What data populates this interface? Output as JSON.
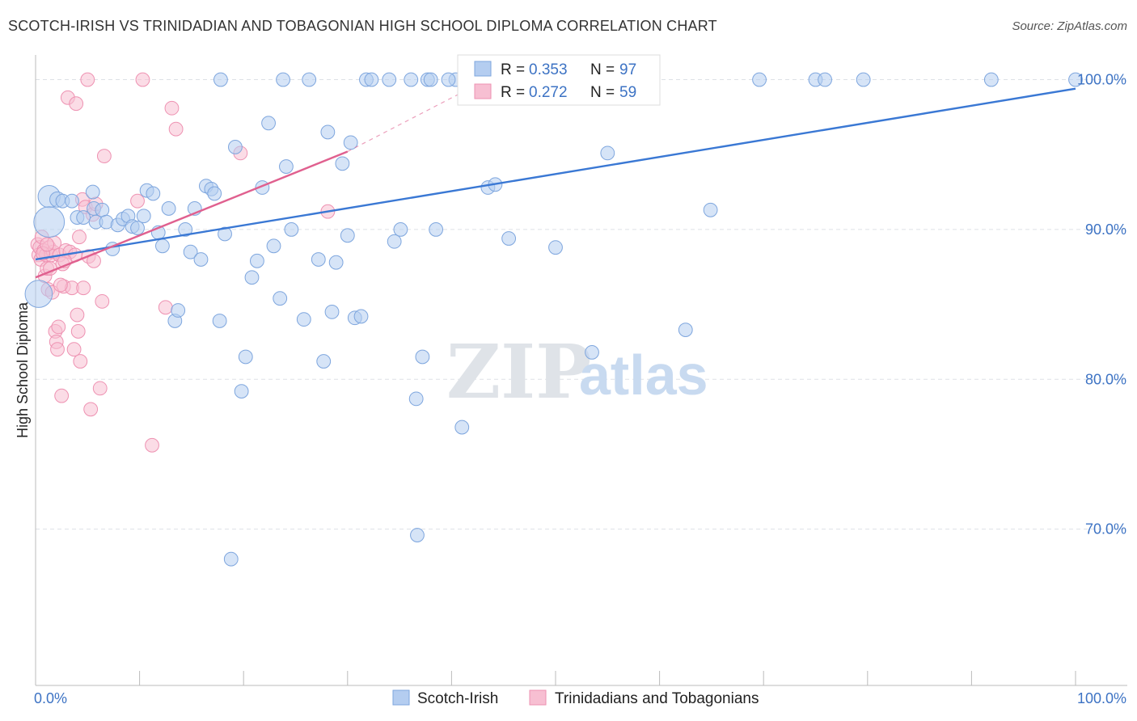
{
  "title": "SCOTCH-IRISH VS TRINIDADIAN AND TOBAGONIAN HIGH SCHOOL DIPLOMA CORRELATION CHART",
  "source": "Source: ZipAtlas.com",
  "watermark": {
    "zip": "ZIP",
    "atlas": "atlas"
  },
  "colors": {
    "blue": "#3a78d4",
    "blue_fill": "#b4cdf0",
    "blue_stroke": "#7ea6de",
    "pink": "#e0608f",
    "pink_fill": "#f7bfd2",
    "pink_stroke": "#ee92b2",
    "grid": "#dde1e6",
    "tick_text": "#3d73c4",
    "axis": "#bbbbbb"
  },
  "legend_top": {
    "rows": [
      {
        "r_label": "R =",
        "r_value": "0.353",
        "n_label": "N =",
        "n_value": "97",
        "series": "blue"
      },
      {
        "r_label": "R =",
        "r_value": "0.272",
        "n_label": "N =",
        "n_value": "59",
        "series": "pink"
      }
    ]
  },
  "legend_bottom": [
    {
      "label": "Scotch-Irish",
      "series": "blue"
    },
    {
      "label": "Trinidadians and Tobagonians",
      "series": "pink"
    }
  ],
  "chart_data": {
    "type": "scatter",
    "title": "SCOTCH-IRISH VS TRINIDADIAN AND TOBAGONIAN HIGH SCHOOL DIPLOMA CORRELATION CHART",
    "xlabel": "",
    "ylabel": "High School Diploma",
    "xlim": [
      0,
      100
    ],
    "ylim": [
      60,
      101
    ],
    "x_tick_labels": [
      {
        "value": 0,
        "label": "0.0%"
      },
      {
        "value": 100,
        "label": "100.0%"
      }
    ],
    "y_tick_labels": [
      {
        "value": 70,
        "label": "70.0%"
      },
      {
        "value": 80,
        "label": "80.0%"
      },
      {
        "value": 90,
        "label": "90.0%"
      },
      {
        "value": 100,
        "label": "100.0%"
      }
    ],
    "series": [
      {
        "name": "Scotch-Irish",
        "color": "blue",
        "r": 0.353,
        "n": 97,
        "trend": {
          "x": [
            0,
            100
          ],
          "y": [
            88.0,
            99.4
          ]
        },
        "points": [
          [
            1.3,
            92.2,
            13
          ],
          [
            1.3,
            90.5,
            18
          ],
          [
            0.3,
            85.7,
            16
          ],
          [
            2.1,
            92.0,
            9
          ],
          [
            2.6,
            91.9,
            8
          ],
          [
            3.5,
            91.9,
            8
          ],
          [
            4.0,
            90.8,
            8
          ],
          [
            4.6,
            90.8,
            8
          ],
          [
            5.5,
            92.5,
            8
          ],
          [
            5.6,
            91.4,
            8
          ],
          [
            6.4,
            91.3,
            8
          ],
          [
            5.8,
            90.5,
            8
          ],
          [
            6.8,
            90.5,
            8
          ],
          [
            7.4,
            88.7,
            8
          ],
          [
            7.9,
            90.3,
            8
          ],
          [
            8.4,
            90.7,
            8
          ],
          [
            8.9,
            90.9,
            8
          ],
          [
            9.3,
            90.2,
            8
          ],
          [
            9.8,
            90.1,
            8
          ],
          [
            10.4,
            90.9,
            8
          ],
          [
            10.7,
            92.6,
            8
          ],
          [
            11.3,
            92.4,
            8
          ],
          [
            11.8,
            89.8,
            8
          ],
          [
            12.2,
            88.9,
            8
          ],
          [
            12.8,
            91.4,
            8
          ],
          [
            13.4,
            83.9,
            8
          ],
          [
            13.7,
            84.6,
            8
          ],
          [
            14.4,
            90.0,
            8
          ],
          [
            14.9,
            88.5,
            8
          ],
          [
            15.3,
            91.4,
            8
          ],
          [
            15.9,
            88.0,
            8
          ],
          [
            16.4,
            92.9,
            8
          ],
          [
            16.9,
            92.7,
            8
          ],
          [
            17.2,
            92.4,
            8
          ],
          [
            17.7,
            83.9,
            8
          ],
          [
            18.2,
            89.7,
            8
          ],
          [
            18.8,
            68.0,
            8
          ],
          [
            19.2,
            95.5,
            8
          ],
          [
            19.8,
            79.2,
            8
          ],
          [
            20.2,
            81.5,
            8
          ],
          [
            20.8,
            86.8,
            8
          ],
          [
            21.3,
            87.9,
            8
          ],
          [
            21.8,
            92.8,
            8
          ],
          [
            22.4,
            97.1,
            8
          ],
          [
            22.9,
            88.9,
            8
          ],
          [
            23.5,
            85.4,
            8
          ],
          [
            24.1,
            94.2,
            8
          ],
          [
            24.6,
            90.0,
            8
          ],
          [
            25.8,
            84.0,
            8
          ],
          [
            26.3,
            100.0,
            8
          ],
          [
            27.2,
            88.0,
            8
          ],
          [
            27.7,
            81.2,
            8
          ],
          [
            28.1,
            96.5,
            8
          ],
          [
            28.5,
            84.5,
            8
          ],
          [
            28.9,
            87.8,
            8
          ],
          [
            29.5,
            94.4,
            8
          ],
          [
            30.0,
            89.6,
            8
          ],
          [
            30.3,
            95.8,
            8
          ],
          [
            30.7,
            84.1,
            8
          ],
          [
            31.3,
            84.2,
            8
          ],
          [
            31.8,
            100.0,
            8
          ],
          [
            32.3,
            100.0,
            8
          ],
          [
            34.0,
            100.0,
            8
          ],
          [
            34.5,
            89.2,
            8
          ],
          [
            35.1,
            90.0,
            8
          ],
          [
            36.1,
            100.0,
            8
          ],
          [
            36.6,
            78.7,
            8
          ],
          [
            37.2,
            81.5,
            8
          ],
          [
            37.7,
            100.0,
            8
          ],
          [
            38.0,
            100.0,
            8
          ],
          [
            38.5,
            90.0,
            8
          ],
          [
            40.4,
            100.0,
            8
          ],
          [
            41.0,
            76.8,
            8
          ],
          [
            42.0,
            100.0,
            8
          ],
          [
            43.5,
            92.8,
            8
          ],
          [
            44.2,
            93.0,
            8
          ],
          [
            44.7,
            100.0,
            8
          ],
          [
            45.5,
            89.4,
            8
          ],
          [
            47.0,
            100.0,
            8
          ],
          [
            50.0,
            88.8,
            8
          ],
          [
            53.0,
            100.0,
            8
          ],
          [
            53.5,
            81.8,
            8
          ],
          [
            55.0,
            95.1,
            8
          ],
          [
            56.0,
            100.0,
            8
          ],
          [
            57.5,
            100.0,
            8
          ],
          [
            62.5,
            83.3,
            8
          ],
          [
            64.9,
            91.3,
            8
          ],
          [
            69.6,
            100.0,
            8
          ],
          [
            75.0,
            100.0,
            8
          ],
          [
            75.9,
            100.0,
            8
          ],
          [
            79.6,
            100.0,
            8
          ],
          [
            91.9,
            100.0,
            8
          ],
          [
            100.0,
            100.0,
            8
          ],
          [
            36.7,
            69.6,
            8
          ],
          [
            39.7,
            100.0,
            8
          ],
          [
            23.8,
            100.0,
            8
          ],
          [
            17.8,
            100.0,
            8
          ]
        ]
      },
      {
        "name": "Trinidadians and Tobagonians",
        "color": "pink",
        "r": 0.272,
        "n": 59,
        "trend": {
          "x": [
            0,
            30
          ],
          "y": [
            86.8,
            95.2
          ]
        },
        "trend_extension": {
          "x": [
            30,
            42
          ],
          "y": [
            95.2,
            99.5
          ]
        },
        "points": [
          [
            0.2,
            89.0,
            8
          ],
          [
            0.3,
            88.3,
            8
          ],
          [
            0.4,
            88.8,
            8
          ],
          [
            0.5,
            88.0,
            8
          ],
          [
            0.6,
            89.5,
            8
          ],
          [
            0.8,
            88.6,
            8
          ],
          [
            0.9,
            86.9,
            8
          ],
          [
            1.0,
            88.3,
            8
          ],
          [
            1.1,
            87.4,
            8
          ],
          [
            1.2,
            86.0,
            8
          ],
          [
            1.3,
            88.8,
            8
          ],
          [
            1.5,
            88.3,
            8
          ],
          [
            1.6,
            85.8,
            8
          ],
          [
            1.7,
            88.5,
            8
          ],
          [
            1.8,
            89.1,
            8
          ],
          [
            1.9,
            83.2,
            8
          ],
          [
            2.0,
            82.5,
            8
          ],
          [
            2.1,
            82.0,
            8
          ],
          [
            2.2,
            83.5,
            8
          ],
          [
            2.3,
            88.3,
            8
          ],
          [
            2.5,
            78.9,
            8
          ],
          [
            2.6,
            87.7,
            8
          ],
          [
            2.7,
            86.2,
            8
          ],
          [
            2.9,
            88.6,
            8
          ],
          [
            3.1,
            98.8,
            8
          ],
          [
            3.3,
            88.5,
            8
          ],
          [
            3.5,
            86.1,
            8
          ],
          [
            3.7,
            82.0,
            8
          ],
          [
            3.9,
            98.4,
            8
          ],
          [
            4.0,
            84.3,
            8
          ],
          [
            4.1,
            83.2,
            8
          ],
          [
            4.2,
            89.5,
            8
          ],
          [
            4.3,
            81.2,
            8
          ],
          [
            4.5,
            92.0,
            8
          ],
          [
            4.6,
            86.1,
            8
          ],
          [
            4.8,
            91.5,
            8
          ],
          [
            5.0,
            100.0,
            8
          ],
          [
            5.1,
            88.2,
            8
          ],
          [
            5.3,
            78.0,
            8
          ],
          [
            5.5,
            91.0,
            8
          ],
          [
            5.6,
            87.9,
            8
          ],
          [
            5.8,
            91.7,
            8
          ],
          [
            6.2,
            79.4,
            8
          ],
          [
            6.4,
            85.2,
            8
          ],
          [
            6.6,
            94.9,
            8
          ],
          [
            9.8,
            91.9,
            8
          ],
          [
            10.3,
            100.0,
            8
          ],
          [
            11.2,
            75.6,
            8
          ],
          [
            12.5,
            84.8,
            8
          ],
          [
            13.1,
            98.1,
            8
          ],
          [
            13.5,
            96.7,
            8
          ],
          [
            19.7,
            95.1,
            8
          ],
          [
            28.1,
            91.2,
            8
          ],
          [
            1.4,
            87.4,
            8
          ],
          [
            2.4,
            86.3,
            8
          ],
          [
            3.8,
            88.3,
            8
          ],
          [
            0.7,
            88.4,
            8
          ],
          [
            1.1,
            89.0,
            8
          ],
          [
            2.8,
            87.9,
            8
          ]
        ]
      }
    ]
  }
}
